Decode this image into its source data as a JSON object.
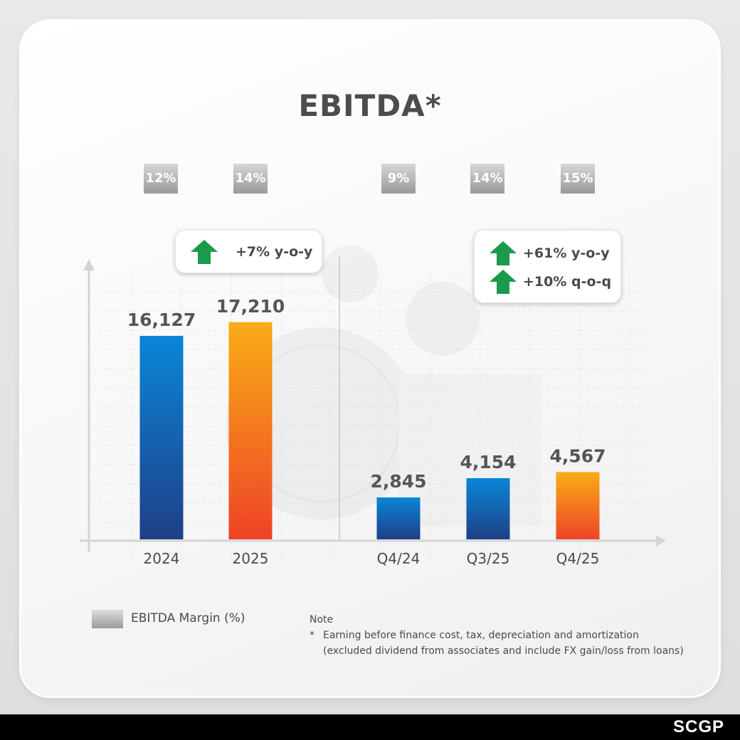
{
  "title": "EBITDA*",
  "margins": [
    {
      "label": "12%"
    },
    {
      "label": "14%"
    },
    {
      "label": "9%"
    },
    {
      "label": "14%"
    },
    {
      "label": "15%"
    }
  ],
  "growth_left": {
    "items": [
      "+7% y-o-y"
    ]
  },
  "growth_right": {
    "items": [
      "+61% y-o-y",
      "+10% q-o-q"
    ]
  },
  "chart_data": [
    {
      "type": "bar",
      "categories": [
        "2024",
        "2025"
      ],
      "values": [
        16127,
        17210
      ],
      "data_labels": [
        "16,127",
        "17,210"
      ],
      "margin_pct": [
        12,
        14
      ],
      "colors": [
        "#1a7fd0",
        "#f7a21b"
      ]
    },
    {
      "type": "bar",
      "categories": [
        "Q4/24",
        "Q3/25",
        "Q4/25"
      ],
      "values": [
        2845,
        4154,
        4567
      ],
      "data_labels": [
        "2,845",
        "4,154",
        "4,567"
      ],
      "margin_pct": [
        9,
        14,
        15
      ],
      "colors": [
        "#1a7fd0",
        "#1a7fd0",
        "#f7a21b"
      ]
    }
  ],
  "colors": {
    "blue_top": "#0a86d8",
    "blue_bottom": "#1f3f86",
    "orange_top": "#f9ad17",
    "orange_bottom": "#ee4327",
    "arrow_green": "#1a9a4a",
    "text_dark": "#4a4a4a"
  },
  "legend": {
    "label": "EBITDA Margin (%)"
  },
  "note": {
    "title": "Note",
    "star": "*",
    "line1": "Earning before finance cost, tax, depreciation and amortization",
    "line2": "(excluded dividend from associates and include FX gain/loss from loans)"
  },
  "brand": "SCGP"
}
